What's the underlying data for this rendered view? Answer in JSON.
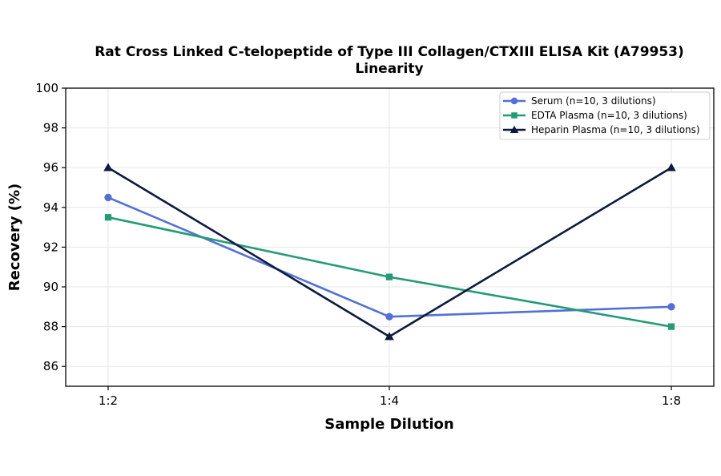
{
  "chart_data": {
    "type": "line",
    "title": "Rat Cross Linked C-telopeptide of Type III Collagen/CTXIII ELISA Kit (A79953)",
    "subtitle": "Linearity",
    "xlabel": "Sample Dilution",
    "ylabel": "Recovery (%)",
    "categories": [
      "1:2",
      "1:4",
      "1:8"
    ],
    "ylim": [
      85,
      100
    ],
    "yticks": [
      86,
      88,
      90,
      92,
      94,
      96,
      98,
      100
    ],
    "grid": true,
    "legend_position": "top-right",
    "series": [
      {
        "name": "Serum (n=10, 3 dilutions)",
        "values": [
          94.5,
          88.5,
          89.0
        ],
        "color": "#5470d6",
        "marker": "circle"
      },
      {
        "name": "EDTA Plasma (n=10, 3 dilutions)",
        "values": [
          93.5,
          90.5,
          88.0
        ],
        "color": "#229b76",
        "marker": "square"
      },
      {
        "name": "Heparin Plasma (n=10, 3 dilutions)",
        "values": [
          96.0,
          87.5,
          96.0
        ],
        "color": "#0d1a3d",
        "marker": "triangle"
      }
    ]
  }
}
